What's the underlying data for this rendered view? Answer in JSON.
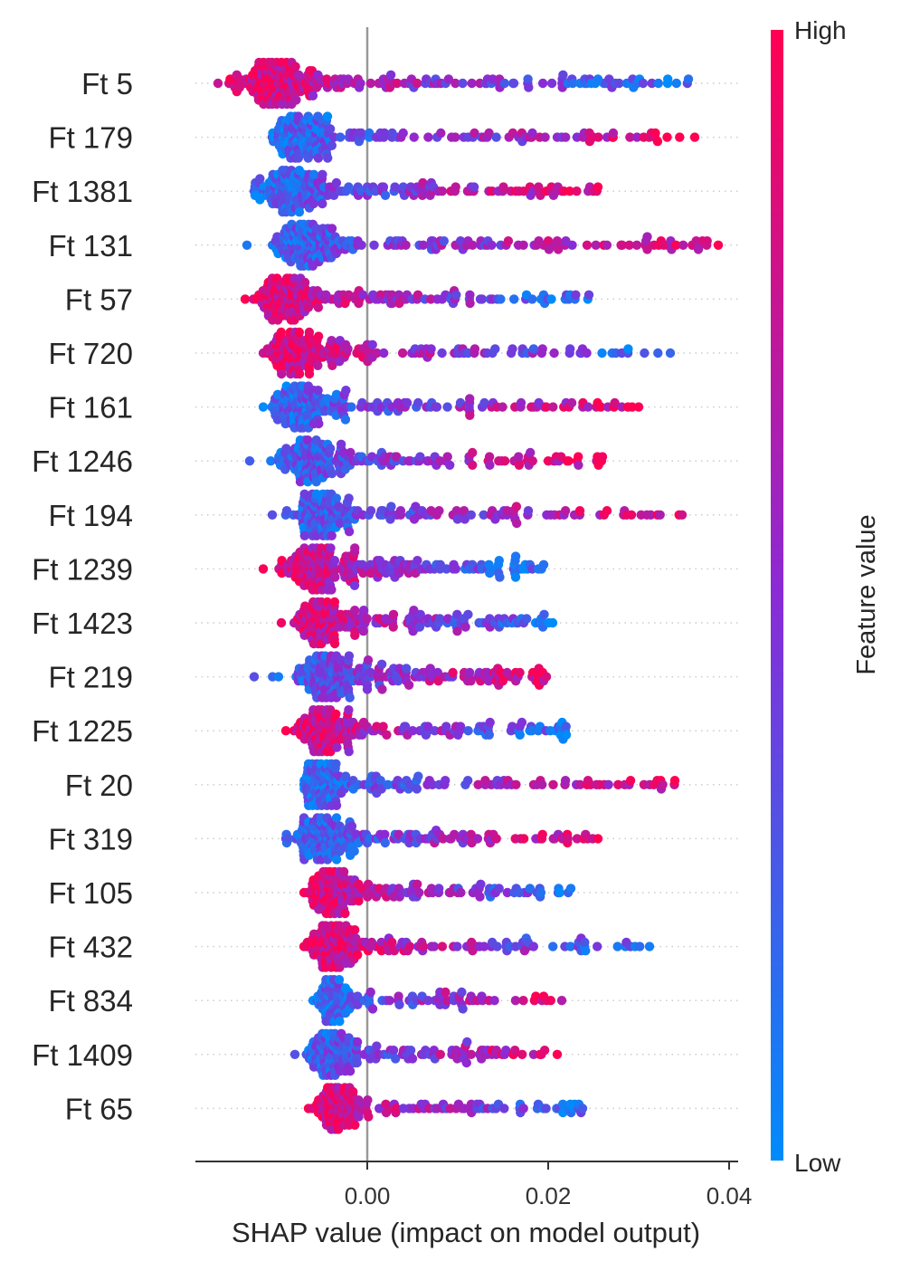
{
  "chart_data": {
    "type": "scatter",
    "subtype": "shap-beeswarm",
    "title": "",
    "xlabel": "SHAP value (impact on model output)",
    "ylabel": "",
    "xlim": [
      -0.019,
      0.041
    ],
    "xticks": [
      0.0,
      0.02,
      0.04
    ],
    "xtick_labels": [
      "0.00",
      "0.02",
      "0.04"
    ],
    "zero_line": 0.0,
    "grid": false,
    "colorbar": {
      "title": "Feature value",
      "high_label": "High",
      "low_label": "Low",
      "high_color": "#ff0052",
      "mid_color": "#8a2bd6",
      "low_color": "#008bfb"
    },
    "features": [
      {
        "name": "Ft 5",
        "min": -0.0165,
        "max": 0.0355,
        "peak": -0.0103,
        "spread": 0.0065,
        "density": 1.0,
        "hi_side": "left"
      },
      {
        "name": "Ft 179",
        "min": -0.0105,
        "max": 0.0362,
        "peak": -0.0075,
        "spread": 0.0042,
        "density": 0.8,
        "hi_side": "right"
      },
      {
        "name": "Ft 1381",
        "min": -0.0125,
        "max": 0.0255,
        "peak": -0.0085,
        "spread": 0.0055,
        "density": 0.85,
        "hi_side": "right"
      },
      {
        "name": "Ft 131",
        "min": -0.0133,
        "max": 0.0388,
        "peak": -0.007,
        "spread": 0.0055,
        "density": 0.85,
        "hi_side": "right"
      },
      {
        "name": "Ft 57",
        "min": -0.0135,
        "max": 0.0245,
        "peak": -0.009,
        "spread": 0.005,
        "density": 0.75,
        "hi_side": "left"
      },
      {
        "name": "Ft 720",
        "min": -0.0115,
        "max": 0.0335,
        "peak": -0.008,
        "spread": 0.005,
        "density": 0.75,
        "hi_side": "left"
      },
      {
        "name": "Ft 161",
        "min": -0.0115,
        "max": 0.03,
        "peak": -0.007,
        "spread": 0.005,
        "density": 0.75,
        "hi_side": "right"
      },
      {
        "name": "Ft 1246",
        "min": -0.013,
        "max": 0.026,
        "peak": -0.0065,
        "spread": 0.0055,
        "density": 0.75,
        "hi_side": "right"
      },
      {
        "name": "Ft 194",
        "min": -0.0105,
        "max": 0.0348,
        "peak": -0.005,
        "spread": 0.0045,
        "density": 0.75,
        "hi_side": "right"
      },
      {
        "name": "Ft 1239",
        "min": -0.0115,
        "max": 0.0195,
        "peak": -0.0055,
        "spread": 0.0055,
        "density": 0.85,
        "hi_side": "left"
      },
      {
        "name": "Ft 1423",
        "min": -0.0095,
        "max": 0.0205,
        "peak": -0.0045,
        "spread": 0.0045,
        "density": 0.75,
        "hi_side": "left"
      },
      {
        "name": "Ft 219",
        "min": -0.0125,
        "max": 0.0198,
        "peak": -0.0045,
        "spread": 0.0065,
        "density": 0.85,
        "hi_side": "right"
      },
      {
        "name": "Ft 1225",
        "min": -0.009,
        "max": 0.022,
        "peak": -0.005,
        "spread": 0.0045,
        "density": 0.75,
        "hi_side": "left"
      },
      {
        "name": "Ft 20",
        "min": -0.007,
        "max": 0.034,
        "peak": -0.005,
        "spread": 0.0035,
        "density": 0.75,
        "hi_side": "right"
      },
      {
        "name": "Ft 319",
        "min": -0.009,
        "max": 0.0255,
        "peak": -0.005,
        "spread": 0.005,
        "density": 0.75,
        "hi_side": "right"
      },
      {
        "name": "Ft 105",
        "min": -0.007,
        "max": 0.0225,
        "peak": -0.004,
        "spread": 0.0035,
        "density": 0.75,
        "hi_side": "left"
      },
      {
        "name": "Ft 432",
        "min": -0.007,
        "max": 0.0312,
        "peak": -0.004,
        "spread": 0.0035,
        "density": 0.75,
        "hi_side": "left"
      },
      {
        "name": "Ft 834",
        "min": -0.006,
        "max": 0.0215,
        "peak": -0.004,
        "spread": 0.0025,
        "density": 0.6,
        "hi_side": "right"
      },
      {
        "name": "Ft 1409",
        "min": -0.008,
        "max": 0.021,
        "peak": -0.004,
        "spread": 0.004,
        "density": 0.7,
        "hi_side": "right"
      },
      {
        "name": "Ft 65",
        "min": -0.0065,
        "max": 0.0238,
        "peak": -0.0035,
        "spread": 0.003,
        "density": 0.7,
        "hi_side": "left"
      }
    ]
  }
}
